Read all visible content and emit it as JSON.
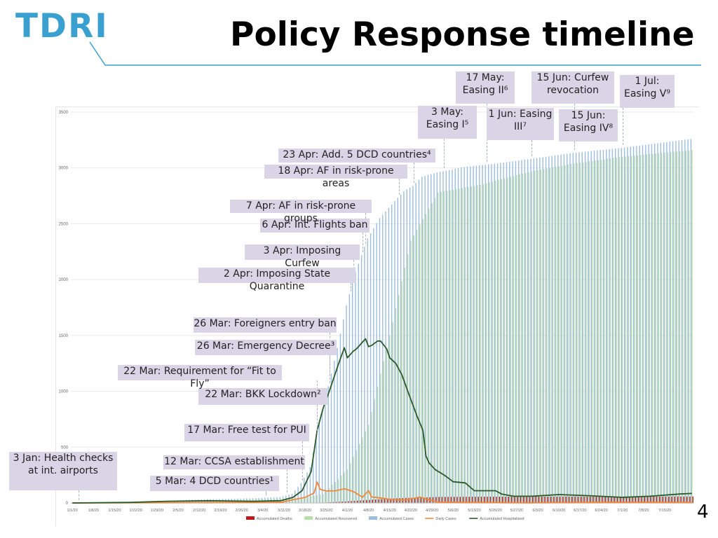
{
  "header": {
    "logo": "TDRI",
    "title": "Policy Response timeline",
    "accent": "#3aa0d0"
  },
  "page_number": "4",
  "annotations": [
    {
      "id": "jan3",
      "text": "3 Jan: Health checks at int. airports",
      "date": "1/3/20"
    },
    {
      "id": "mar5",
      "text": "5 Mar: 4 DCD countries¹",
      "date": "3/5/20"
    },
    {
      "id": "mar12",
      "text": "12 Mar: CCSA establishment",
      "date": "3/12/20"
    },
    {
      "id": "mar17",
      "text": "17 Mar: Free test for PUI",
      "date": "3/17/20"
    },
    {
      "id": "mar22a",
      "text": "22 Mar: BKK Lockdown²",
      "date": "3/22/20"
    },
    {
      "id": "mar22b",
      "text": "22 Mar: Requirement for “Fit to Fly”",
      "date": "3/22/20"
    },
    {
      "id": "mar26a",
      "text": "26 Mar: Emergency Decree³",
      "date": "3/26/20"
    },
    {
      "id": "mar26b",
      "text": "26 Mar: Foreigners entry ban",
      "date": "3/26/20"
    },
    {
      "id": "apr2",
      "text": "2 Apr: Imposing State Quarantine",
      "date": "4/2/20"
    },
    {
      "id": "apr3",
      "text": "3 Apr: Imposing Curfew",
      "date": "4/3/20"
    },
    {
      "id": "apr6",
      "text": "6 Apr: Int. Flights ban",
      "date": "4/6/20"
    },
    {
      "id": "apr7",
      "text": "7 Apr: AF in risk-prone groups",
      "date": "4/7/20"
    },
    {
      "id": "apr18",
      "text": "18 Apr: AF in risk-prone areas",
      "date": "4/18/20"
    },
    {
      "id": "apr23",
      "text": "23 Apr: Add. 5 DCD countries⁴",
      "date": "4/23/20"
    },
    {
      "id": "may3",
      "text": "3 May: Easing I⁵",
      "date": "5/3/20"
    },
    {
      "id": "may17",
      "text": "17 May: Easing II⁶",
      "date": "5/17/20"
    },
    {
      "id": "jun1",
      "text": "1 Jun: Easing III⁷",
      "date": "6/1/20"
    },
    {
      "id": "jun15a",
      "text": "15 Jun: Curfew revocation",
      "date": "6/15/20"
    },
    {
      "id": "jun15b",
      "text": "15 Jun: Easing IV⁸",
      "date": "6/15/20"
    },
    {
      "id": "jul1",
      "text": "1 Jul: Easing V⁹",
      "date": "7/1/20"
    }
  ],
  "chart_data": {
    "type": "bar",
    "title": "",
    "xlabel": "",
    "ylabel": "",
    "ylim": [
      0,
      3500
    ],
    "yticks": [
      "0",
      "500",
      "1000",
      "1500",
      "2000",
      "2500",
      "3000",
      "3500"
    ],
    "x_start": "1/1/20",
    "x_end": "7/24/20",
    "x_tick_labels": [
      "1/1/20",
      "1/8/20",
      "1/15/20",
      "1/22/20",
      "1/29/20",
      "2/5/20",
      "2/12/20",
      "2/19/20",
      "2/26/20",
      "3/4/20",
      "3/11/20",
      "3/18/20",
      "3/25/20",
      "4/1/20",
      "4/8/20",
      "4/15/20",
      "4/22/20",
      "4/29/20",
      "5/6/20",
      "5/13/20",
      "5/20/20",
      "5/27/20",
      "6/3/20",
      "6/10/20",
      "6/17/20",
      "6/24/20",
      "7/1/20",
      "7/8/20",
      "7/15/20"
    ],
    "grid": true,
    "legend_position": "bottom",
    "series": [
      {
        "name": "Accumulated Deaths",
        "type": "bar",
        "color": "#c0161e",
        "points": [
          [
            "1/1/20",
            0
          ],
          [
            "3/1/20",
            1
          ],
          [
            "3/16/20",
            1
          ],
          [
            "3/24/20",
            4
          ],
          [
            "4/1/20",
            15
          ],
          [
            "4/15/20",
            40
          ],
          [
            "5/1/20",
            54
          ],
          [
            "5/15/20",
            56
          ],
          [
            "6/1/20",
            57
          ],
          [
            "7/24/20",
            58
          ]
        ]
      },
      {
        "name": "Accumulated Recovered",
        "type": "bar",
        "color": "#b8dcaa",
        "points": [
          [
            "1/1/20",
            0
          ],
          [
            "3/1/20",
            30
          ],
          [
            "3/16/20",
            40
          ],
          [
            "3/24/20",
            80
          ],
          [
            "4/1/20",
            300
          ],
          [
            "4/8/20",
            700
          ],
          [
            "4/15/20",
            1500
          ],
          [
            "4/22/20",
            2350
          ],
          [
            "5/1/20",
            2780
          ],
          [
            "5/15/20",
            2850
          ],
          [
            "6/1/20",
            2970
          ],
          [
            "6/15/20",
            3040
          ],
          [
            "7/1/20",
            3100
          ],
          [
            "7/24/20",
            3160
          ]
        ]
      },
      {
        "name": "Accumulated Cases",
        "type": "bar",
        "color": "#9bbcdc",
        "points": [
          [
            "1/1/20",
            0
          ],
          [
            "1/20/20",
            3
          ],
          [
            "2/1/20",
            19
          ],
          [
            "2/15/20",
            34
          ],
          [
            "3/1/20",
            42
          ],
          [
            "3/10/20",
            53
          ],
          [
            "3/14/20",
            82
          ],
          [
            "3/17/20",
            177
          ],
          [
            "3/20/20",
            322
          ],
          [
            "3/23/20",
            721
          ],
          [
            "3/26/20",
            1045
          ],
          [
            "3/29/20",
            1388
          ],
          [
            "4/1/20",
            1771
          ],
          [
            "4/4/20",
            2067
          ],
          [
            "4/8/20",
            2369
          ],
          [
            "4/12/20",
            2551
          ],
          [
            "4/16/20",
            2672
          ],
          [
            "4/20/20",
            2792
          ],
          [
            "4/23/20",
            2839
          ],
          [
            "4/26/20",
            2922
          ],
          [
            "5/1/20",
            2960
          ],
          [
            "5/10/20",
            3009
          ],
          [
            "5/20/20",
            3037
          ],
          [
            "6/1/20",
            3081
          ],
          [
            "6/15/20",
            3135
          ],
          [
            "7/1/20",
            3179
          ],
          [
            "7/24/20",
            3260
          ]
        ]
      },
      {
        "name": "Daily Cases",
        "type": "line",
        "color": "#f0883c",
        "points": [
          [
            "1/1/20",
            0
          ],
          [
            "3/10/20",
            5
          ],
          [
            "3/14/20",
            30
          ],
          [
            "3/18/20",
            50
          ],
          [
            "3/21/20",
            89
          ],
          [
            "3/22/20",
            188
          ],
          [
            "3/23/20",
            122
          ],
          [
            "3/25/20",
            107
          ],
          [
            "3/28/20",
            109
          ],
          [
            "3/31/20",
            127
          ],
          [
            "4/3/20",
            103
          ],
          [
            "4/6/20",
            51
          ],
          [
            "4/8/20",
            111
          ],
          [
            "4/9/20",
            54
          ],
          [
            "4/12/20",
            45
          ],
          [
            "4/16/20",
            29
          ],
          [
            "4/20/20",
            27
          ],
          [
            "4/25/20",
            53
          ],
          [
            "5/1/20",
            6
          ],
          [
            "5/15/20",
            3
          ],
          [
            "6/1/20",
            1
          ],
          [
            "7/1/20",
            5
          ],
          [
            "7/24/20",
            4
          ]
        ]
      },
      {
        "name": "Accumulated Hospitalised",
        "type": "line",
        "color": "#2a5a2a",
        "points": [
          [
            "1/1/20",
            0
          ],
          [
            "1/20/20",
            5
          ],
          [
            "2/1/20",
            15
          ],
          [
            "2/15/20",
            20
          ],
          [
            "3/1/20",
            15
          ],
          [
            "3/10/20",
            20
          ],
          [
            "3/14/20",
            50
          ],
          [
            "3/17/20",
            110
          ],
          [
            "3/20/20",
            280
          ],
          [
            "3/22/20",
            650
          ],
          [
            "3/24/20",
            850
          ],
          [
            "3/26/20",
            1000
          ],
          [
            "3/29/20",
            1240
          ],
          [
            "3/31/20",
            1390
          ],
          [
            "4/1/20",
            1300
          ],
          [
            "4/3/20",
            1360
          ],
          [
            "4/4/20",
            1380
          ],
          [
            "4/6/20",
            1440
          ],
          [
            "4/7/20",
            1470
          ],
          [
            "4/8/20",
            1400
          ],
          [
            "4/9/20",
            1410
          ],
          [
            "4/11/20",
            1450
          ],
          [
            "4/12/20",
            1450
          ],
          [
            "4/14/20",
            1380
          ],
          [
            "4/15/20",
            1300
          ],
          [
            "4/17/20",
            1250
          ],
          [
            "4/19/20",
            1150
          ],
          [
            "4/21/20",
            1000
          ],
          [
            "4/24/20",
            780
          ],
          [
            "4/26/20",
            650
          ],
          [
            "4/27/20",
            420
          ],
          [
            "4/28/20",
            360
          ],
          [
            "4/30/20",
            300
          ],
          [
            "5/3/20",
            250
          ],
          [
            "5/6/20",
            190
          ],
          [
            "5/10/20",
            180
          ],
          [
            "5/13/20",
            110
          ],
          [
            "5/20/20",
            110
          ],
          [
            "5/22/20",
            80
          ],
          [
            "5/26/20",
            60
          ],
          [
            "6/1/20",
            60
          ],
          [
            "6/10/20",
            75
          ],
          [
            "6/20/20",
            65
          ],
          [
            "7/1/20",
            50
          ],
          [
            "7/10/20",
            60
          ],
          [
            "7/20/20",
            80
          ],
          [
            "7/24/20",
            85
          ]
        ]
      }
    ]
  }
}
